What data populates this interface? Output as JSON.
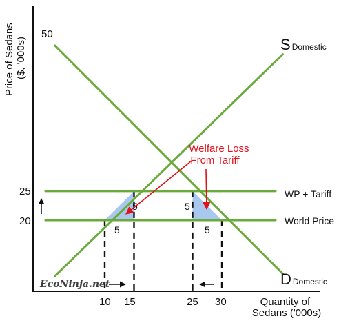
{
  "chart_data": {
    "type": "line",
    "xlabel": "Quantity of Sedans ('000s)",
    "xlabel_lines": [
      "Quantity of",
      "Sedans ('000s)"
    ],
    "ylabel": "Price of Sedans ($, '000s)",
    "ylabel_lines": [
      "Price of Sedans",
      "($, '000s)"
    ],
    "x_ticks": [
      "10",
      "15",
      "25",
      "30"
    ],
    "y_ticks": [
      "20",
      "25",
      "50"
    ],
    "series": [
      {
        "label_main": "S",
        "label_sub": "Domestic",
        "color": "#6aaa3a",
        "x": [
          0,
          40
        ],
        "y": [
          10,
          50
        ]
      },
      {
        "label_main": "D",
        "label_sub": "Domestic",
        "color": "#6aaa3a",
        "x": [
          0,
          40
        ],
        "y": [
          50,
          10
        ]
      },
      {
        "name": "WP + Tariff",
        "color": "#6aaa3a",
        "x": [
          0,
          40
        ],
        "y": [
          25,
          25
        ]
      },
      {
        "name": "World Price",
        "color": "#6aaa3a",
        "x": [
          0,
          40
        ],
        "y": [
          20,
          20
        ]
      }
    ],
    "welfare_loss": {
      "label_lines": [
        "Welfare Loss",
        "From Tariff"
      ],
      "fill_color": "#a9c8ef",
      "triangles": [
        {
          "points": [
            [
              10,
              20
            ],
            [
              15,
              20
            ],
            [
              15,
              25
            ]
          ],
          "labels": [
            "5",
            "5"
          ]
        },
        {
          "points": [
            [
              25,
              25
            ],
            [
              25,
              20
            ],
            [
              30,
              20
            ]
          ],
          "labels": [
            "5",
            "5"
          ]
        }
      ]
    },
    "dashed_drops": [
      10,
      15,
      25,
      30
    ],
    "annotation_color": "#e0121b"
  },
  "watermark": "EcoNinja.net"
}
